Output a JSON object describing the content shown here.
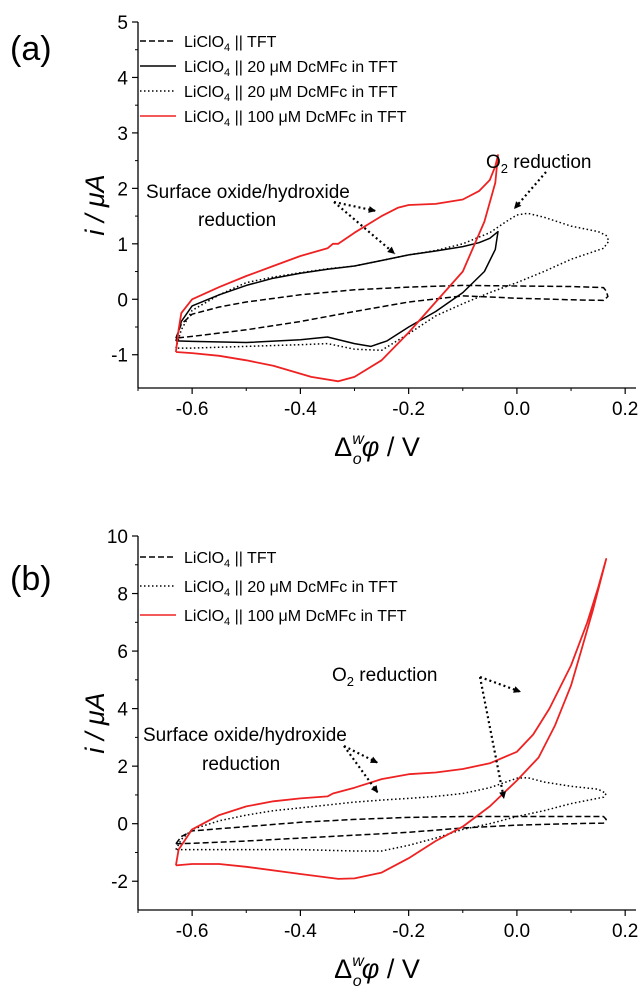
{
  "chart_data": [
    {
      "panel": "(a)",
      "type": "line",
      "xlabel": "Δ_o^w φ / V",
      "ylabel": "i / μA",
      "xlim": [
        -0.7,
        0.22
      ],
      "ylim": [
        -1.6,
        5
      ],
      "xticks": [
        "-0.6",
        "-0.4",
        "-0.2",
        "0.0",
        "0.2"
      ],
      "yticks": [
        "-1",
        "0",
        "1",
        "2",
        "3",
        "4",
        "5"
      ],
      "legend_position": "top-left",
      "series": [
        {
          "name": "LiClO4 || TFT",
          "color": "#000000",
          "dash": "dashed",
          "points": [
            [
              -0.63,
              -0.7
            ],
            [
              -0.62,
              -0.45
            ],
            [
              -0.6,
              -0.27
            ],
            [
              -0.55,
              -0.14
            ],
            [
              -0.5,
              -0.05
            ],
            [
              -0.4,
              0.08
            ],
            [
              -0.3,
              0.17
            ],
            [
              -0.2,
              0.22
            ],
            [
              -0.1,
              0.25
            ],
            [
              0.0,
              0.24
            ],
            [
              0.1,
              0.23
            ],
            [
              0.16,
              0.21
            ],
            [
              0.165,
              0.15
            ],
            [
              0.168,
              0.05
            ],
            [
              0.16,
              -0.02
            ],
            [
              0.1,
              -0.01
            ],
            [
              0.0,
              0.02
            ],
            [
              -0.1,
              0.06
            ],
            [
              -0.2,
              -0.05
            ],
            [
              -0.3,
              -0.22
            ],
            [
              -0.4,
              -0.4
            ],
            [
              -0.5,
              -0.55
            ],
            [
              -0.6,
              -0.67
            ],
            [
              -0.63,
              -0.7
            ]
          ]
        },
        {
          "name": "LiClO4 || 20 μM DcMFc in TFT",
          "color": "#000000",
          "dash": "solid",
          "points": [
            [
              -0.63,
              -0.75
            ],
            [
              -0.62,
              -0.4
            ],
            [
              -0.6,
              -0.12
            ],
            [
              -0.55,
              0.08
            ],
            [
              -0.5,
              0.25
            ],
            [
              -0.45,
              0.38
            ],
            [
              -0.4,
              0.47
            ],
            [
              -0.35,
              0.54
            ],
            [
              -0.3,
              0.6
            ],
            [
              -0.25,
              0.7
            ],
            [
              -0.2,
              0.8
            ],
            [
              -0.15,
              0.87
            ],
            [
              -0.1,
              0.95
            ],
            [
              -0.07,
              1.02
            ],
            [
              -0.05,
              1.1
            ],
            [
              -0.04,
              1.18
            ],
            [
              -0.035,
              1.22
            ],
            [
              -0.04,
              0.9
            ],
            [
              -0.06,
              0.5
            ],
            [
              -0.1,
              0.12
            ],
            [
              -0.15,
              -0.22
            ],
            [
              -0.2,
              -0.5
            ],
            [
              -0.24,
              -0.75
            ],
            [
              -0.27,
              -0.85
            ],
            [
              -0.3,
              -0.8
            ],
            [
              -0.35,
              -0.68
            ],
            [
              -0.4,
              -0.73
            ],
            [
              -0.5,
              -0.78
            ],
            [
              -0.6,
              -0.76
            ],
            [
              -0.63,
              -0.75
            ]
          ]
        },
        {
          "name": "LiClO4 || 20 μM DcMFc in TFT",
          "color": "#000000",
          "dash": "dotted",
          "points": [
            [
              -0.63,
              -0.88
            ],
            [
              -0.62,
              -0.55
            ],
            [
              -0.6,
              -0.2
            ],
            [
              -0.55,
              0.08
            ],
            [
              -0.5,
              0.3
            ],
            [
              -0.45,
              0.4
            ],
            [
              -0.4,
              0.48
            ],
            [
              -0.35,
              0.55
            ],
            [
              -0.3,
              0.6
            ],
            [
              -0.25,
              0.7
            ],
            [
              -0.2,
              0.8
            ],
            [
              -0.15,
              0.88
            ],
            [
              -0.1,
              1.0
            ],
            [
              -0.05,
              1.2
            ],
            [
              -0.02,
              1.4
            ],
            [
              0.0,
              1.52
            ],
            [
              0.02,
              1.55
            ],
            [
              0.05,
              1.48
            ],
            [
              0.1,
              1.32
            ],
            [
              0.15,
              1.22
            ],
            [
              0.165,
              1.15
            ],
            [
              0.17,
              1.05
            ],
            [
              0.16,
              0.92
            ],
            [
              0.1,
              0.72
            ],
            [
              0.05,
              0.5
            ],
            [
              0.0,
              0.3
            ],
            [
              -0.05,
              0.12
            ],
            [
              -0.1,
              -0.08
            ],
            [
              -0.15,
              -0.3
            ],
            [
              -0.2,
              -0.62
            ],
            [
              -0.25,
              -0.92
            ],
            [
              -0.3,
              -0.9
            ],
            [
              -0.35,
              -0.8
            ],
            [
              -0.4,
              -0.82
            ],
            [
              -0.5,
              -0.85
            ],
            [
              -0.6,
              -0.88
            ],
            [
              -0.63,
              -0.88
            ]
          ]
        },
        {
          "name": "LiClO4 || 100 μM DcMFc in TFT",
          "color": "#ee2222",
          "dash": "solid",
          "points": [
            [
              -0.63,
              -0.95
            ],
            [
              -0.625,
              -0.55
            ],
            [
              -0.62,
              -0.25
            ],
            [
              -0.6,
              0.0
            ],
            [
              -0.55,
              0.22
            ],
            [
              -0.5,
              0.42
            ],
            [
              -0.45,
              0.6
            ],
            [
              -0.4,
              0.78
            ],
            [
              -0.35,
              0.92
            ],
            [
              -0.34,
              1.0
            ],
            [
              -0.33,
              1.0
            ],
            [
              -0.3,
              1.2
            ],
            [
              -0.25,
              1.5
            ],
            [
              -0.22,
              1.65
            ],
            [
              -0.2,
              1.7
            ],
            [
              -0.15,
              1.72
            ],
            [
              -0.1,
              1.8
            ],
            [
              -0.07,
              1.95
            ],
            [
              -0.05,
              2.15
            ],
            [
              -0.04,
              2.4
            ],
            [
              -0.035,
              2.6
            ],
            [
              -0.04,
              2.1
            ],
            [
              -0.06,
              1.4
            ],
            [
              -0.1,
              0.5
            ],
            [
              -0.15,
              -0.05
            ],
            [
              -0.2,
              -0.6
            ],
            [
              -0.25,
              -1.1
            ],
            [
              -0.3,
              -1.4
            ],
            [
              -0.33,
              -1.48
            ],
            [
              -0.38,
              -1.4
            ],
            [
              -0.45,
              -1.2
            ],
            [
              -0.5,
              -1.1
            ],
            [
              -0.55,
              -1.02
            ],
            [
              -0.6,
              -0.97
            ],
            [
              -0.63,
              -0.95
            ]
          ]
        }
      ],
      "annotations": [
        "Surface oxide/hydroxide",
        "reduction",
        "O2 reduction"
      ]
    },
    {
      "panel": "(b)",
      "type": "line",
      "xlabel": "Δ_o^w φ / V",
      "ylabel": "i / μA",
      "xlim": [
        -0.7,
        0.22
      ],
      "ylim": [
        -3,
        10
      ],
      "xticks": [
        "-0.6",
        "-0.4",
        "-0.2",
        "0.0",
        "0.2"
      ],
      "yticks": [
        "-2",
        "0",
        "2",
        "4",
        "6",
        "8",
        "10"
      ],
      "legend_position": "top-left",
      "series": [
        {
          "name": "LiClO4 || TFT",
          "color": "#000000",
          "dash": "dashed",
          "points": [
            [
              -0.63,
              -0.7
            ],
            [
              -0.62,
              -0.45
            ],
            [
              -0.6,
              -0.25
            ],
            [
              -0.5,
              -0.1
            ],
            [
              -0.4,
              0.05
            ],
            [
              -0.3,
              0.15
            ],
            [
              -0.2,
              0.22
            ],
            [
              -0.1,
              0.25
            ],
            [
              0.0,
              0.25
            ],
            [
              0.1,
              0.25
            ],
            [
              0.16,
              0.25
            ],
            [
              0.165,
              0.15
            ],
            [
              0.16,
              0.02
            ],
            [
              0.1,
              0.0
            ],
            [
              0.0,
              -0.05
            ],
            [
              -0.1,
              -0.15
            ],
            [
              -0.2,
              -0.3
            ],
            [
              -0.3,
              -0.4
            ],
            [
              -0.4,
              -0.5
            ],
            [
              -0.5,
              -0.6
            ],
            [
              -0.6,
              -0.68
            ],
            [
              -0.63,
              -0.7
            ]
          ]
        },
        {
          "name": "LiClO4 || 20 μM DcMFc in TFT",
          "color": "#000000",
          "dash": "dotted",
          "points": [
            [
              -0.63,
              -0.9
            ],
            [
              -0.62,
              -0.55
            ],
            [
              -0.6,
              -0.2
            ],
            [
              -0.55,
              0.1
            ],
            [
              -0.5,
              0.3
            ],
            [
              -0.45,
              0.45
            ],
            [
              -0.4,
              0.55
            ],
            [
              -0.35,
              0.65
            ],
            [
              -0.3,
              0.75
            ],
            [
              -0.25,
              0.82
            ],
            [
              -0.2,
              0.88
            ],
            [
              -0.15,
              0.95
            ],
            [
              -0.1,
              1.05
            ],
            [
              -0.05,
              1.25
            ],
            [
              -0.02,
              1.45
            ],
            [
              0.0,
              1.58
            ],
            [
              0.02,
              1.6
            ],
            [
              0.05,
              1.45
            ],
            [
              0.1,
              1.3
            ],
            [
              0.15,
              1.2
            ],
            [
              0.165,
              1.05
            ],
            [
              0.16,
              0.92
            ],
            [
              0.1,
              0.7
            ],
            [
              0.05,
              0.45
            ],
            [
              0.0,
              0.25
            ],
            [
              -0.05,
              0.0
            ],
            [
              -0.1,
              -0.2
            ],
            [
              -0.15,
              -0.5
            ],
            [
              -0.2,
              -0.75
            ],
            [
              -0.25,
              -0.95
            ],
            [
              -0.3,
              -0.95
            ],
            [
              -0.4,
              -0.9
            ],
            [
              -0.5,
              -0.9
            ],
            [
              -0.6,
              -0.9
            ],
            [
              -0.63,
              -0.9
            ]
          ]
        },
        {
          "name": "LiClO4 || 100 μM DcMFc in TFT",
          "color": "#ee2222",
          "dash": "solid",
          "points": [
            [
              -0.63,
              -1.45
            ],
            [
              -0.625,
              -0.9
            ],
            [
              -0.6,
              -0.2
            ],
            [
              -0.55,
              0.3
            ],
            [
              -0.5,
              0.6
            ],
            [
              -0.45,
              0.78
            ],
            [
              -0.4,
              0.88
            ],
            [
              -0.35,
              0.95
            ],
            [
              -0.34,
              1.05
            ],
            [
              -0.3,
              1.25
            ],
            [
              -0.25,
              1.55
            ],
            [
              -0.2,
              1.72
            ],
            [
              -0.15,
              1.78
            ],
            [
              -0.1,
              1.9
            ],
            [
              -0.05,
              2.1
            ],
            [
              0.0,
              2.5
            ],
            [
              0.03,
              3.1
            ],
            [
              0.06,
              4.0
            ],
            [
              0.1,
              5.5
            ],
            [
              0.13,
              7.0
            ],
            [
              0.15,
              8.2
            ],
            [
              0.165,
              9.2
            ],
            [
              0.14,
              7.4
            ],
            [
              0.12,
              6.1
            ],
            [
              0.1,
              4.8
            ],
            [
              0.07,
              3.4
            ],
            [
              0.04,
              2.3
            ],
            [
              0.0,
              1.5
            ],
            [
              -0.05,
              0.6
            ],
            [
              -0.1,
              -0.1
            ],
            [
              -0.15,
              -0.6
            ],
            [
              -0.2,
              -1.2
            ],
            [
              -0.25,
              -1.7
            ],
            [
              -0.3,
              -1.9
            ],
            [
              -0.33,
              -1.92
            ],
            [
              -0.4,
              -1.75
            ],
            [
              -0.5,
              -1.5
            ],
            [
              -0.55,
              -1.4
            ],
            [
              -0.6,
              -1.4
            ],
            [
              -0.63,
              -1.45
            ]
          ]
        }
      ],
      "annotations": [
        "O2 reduction",
        "Surface oxide/hydroxide",
        "reduction"
      ]
    }
  ]
}
